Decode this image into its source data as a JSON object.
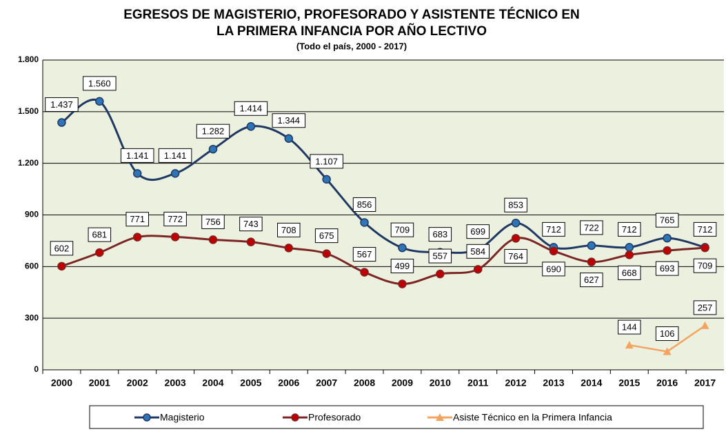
{
  "chart_data": {
    "type": "line",
    "title": [
      "EGRESOS DE MAGISTERIO, PROFESORADO Y ASISTENTE TÉCNICO EN",
      "LA PRIMERA INFANCIA POR AÑO LECTIVO"
    ],
    "subtitle": "(Todo el país, 2000 - 2017)",
    "categories": [
      "2000",
      "2001",
      "2002",
      "2003",
      "2004",
      "2005",
      "2006",
      "2007",
      "2008",
      "2009",
      "2010",
      "2011",
      "2012",
      "2013",
      "2014",
      "2015",
      "2016",
      "2017"
    ],
    "series": [
      {
        "name": "Magisterio",
        "color": "#1f3864",
        "marker_color": "#2e75b6",
        "values": [
          1437,
          1560,
          1141,
          1141,
          1282,
          1414,
          1344,
          1107,
          856,
          709,
          683,
          699,
          853,
          712,
          722,
          712,
          765,
          712
        ],
        "value_labels": [
          "1.437",
          "1.560",
          "1.141",
          "1.141",
          "1.282",
          "1.414",
          "1.344",
          "1.107",
          "856",
          "709",
          "683",
          "699",
          "853",
          "712",
          "722",
          "712",
          "765",
          "712"
        ]
      },
      {
        "name": "Profesorado",
        "color": "#7b2525",
        "marker_color": "#c00000",
        "values": [
          602,
          681,
          771,
          772,
          756,
          743,
          708,
          675,
          567,
          499,
          557,
          584,
          764,
          690,
          627,
          668,
          693,
          709
        ]
      },
      {
        "name": "Asiste Técnico en la Primera Infancia",
        "color": "#f4a460",
        "marker_color": "#f4a460",
        "values": [
          null,
          null,
          null,
          null,
          null,
          null,
          null,
          null,
          null,
          null,
          null,
          null,
          null,
          null,
          null,
          144,
          106,
          257
        ]
      }
    ],
    "ylim": [
      0,
      1800
    ],
    "yticks": [
      0,
      300,
      600,
      900,
      {
        "value": 1200,
        "label": "1.200"
      },
      {
        "value": 1500,
        "label": "1.500"
      },
      {
        "value": 1800,
        "label": "1.800"
      }
    ],
    "grid": true
  }
}
